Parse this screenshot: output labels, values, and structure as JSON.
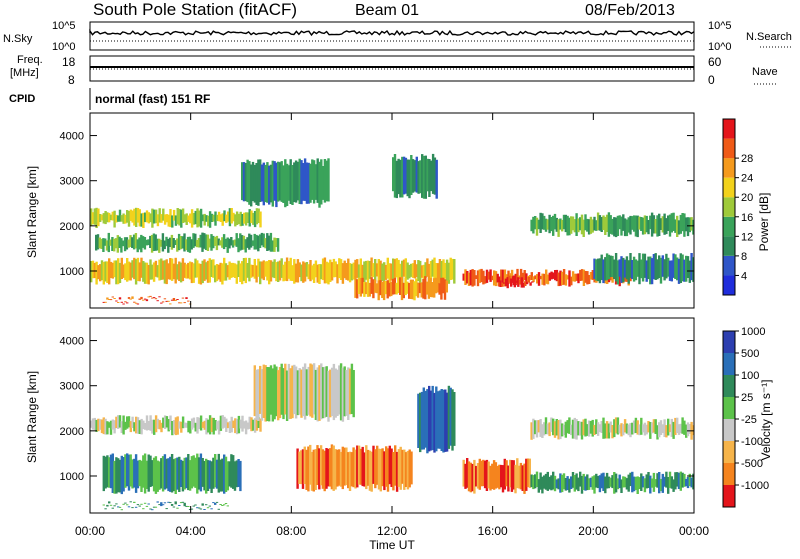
{
  "header": {
    "station": "South Pole Station (fitACF)",
    "beam": "Beam 01",
    "date": "08/Feb/2013"
  },
  "strip": {
    "nsky_label": "N.Sky",
    "nsearch_label": "N.Search",
    "noise_ticks_left": [
      "10^5",
      "10^0"
    ],
    "noise_ticks_right": [
      "10^5",
      "10^0"
    ],
    "freq_label_line1": "Freq.",
    "freq_label_line2": "[MHz]",
    "freq_ticks": [
      "18",
      "8"
    ],
    "nave_label": "Nave",
    "nave_ticks": [
      "60",
      "0"
    ],
    "cpid_label": "CPID",
    "cpid_text": "normal (fast) 151 RF"
  },
  "axes": {
    "time_ticks": [
      "00:00",
      "04:00",
      "08:00",
      "12:00",
      "16:00",
      "20:00",
      "00:00"
    ],
    "xlabel": "Time UT",
    "range_ticks": [
      "1000",
      "2000",
      "3000",
      "4000"
    ],
    "ylabel": "Slant Range [km]"
  },
  "power_bar": {
    "title": "Power [dB]",
    "ticks": [
      "4",
      "8",
      "12",
      "16",
      "20",
      "24",
      "28"
    ],
    "colors": [
      "#1f2ddb",
      "#2f56c8",
      "#2f8a5a",
      "#3aa35a",
      "#9fca3a",
      "#f2d21c",
      "#f59a1d",
      "#ef5a17",
      "#e4151b"
    ]
  },
  "velocity_bar": {
    "title": "Velocity [m s⁻¹]",
    "ticks": [
      "1000",
      "500",
      "100",
      "25",
      "-25",
      "-100",
      "-500",
      "-1000"
    ],
    "colors": [
      "#2d3fb0",
      "#2a6fb8",
      "#2f8a5a",
      "#5cc24a",
      "#c8c8c8",
      "#f6b44a",
      "#f5841e",
      "#e4151b"
    ]
  },
  "chart_data": [
    {
      "type": "heatmap",
      "name": "Power",
      "xlim": [
        0,
        24
      ],
      "ylim": [
        180,
        4500
      ],
      "bands": [
        {
          "t0": 0.0,
          "t1": 6.8,
          "r0": 1950,
          "r1": 2400,
          "level": 4
        },
        {
          "t0": 0.2,
          "t1": 7.5,
          "r0": 1400,
          "r1": 1850,
          "level": 3
        },
        {
          "t0": 0.0,
          "t1": 14.5,
          "r0": 700,
          "r1": 1300,
          "level": 5
        },
        {
          "t0": 0.5,
          "t1": 4.0,
          "r0": 330,
          "r1": 450,
          "level": 7
        },
        {
          "t0": 6.0,
          "t1": 9.5,
          "r0": 2400,
          "r1": 3500,
          "level": 2
        },
        {
          "t0": 12.0,
          "t1": 13.8,
          "r0": 2600,
          "r1": 3600,
          "level": 2
        },
        {
          "t0": 10.5,
          "t1": 14.2,
          "r0": 350,
          "r1": 900,
          "level": 6
        },
        {
          "t0": 14.8,
          "t1": 21.5,
          "r0": 650,
          "r1": 1050,
          "level": 7
        },
        {
          "t0": 16.2,
          "t1": 17.6,
          "r0": 600,
          "r1": 900,
          "level": 8
        },
        {
          "t0": 17.5,
          "t1": 24.0,
          "r0": 1750,
          "r1": 2300,
          "level": 3
        },
        {
          "t0": 20.0,
          "t1": 24.0,
          "r0": 700,
          "r1": 1400,
          "level": 2
        }
      ]
    },
    {
      "type": "heatmap",
      "name": "Velocity",
      "xlim": [
        0,
        24
      ],
      "ylim": [
        180,
        4500
      ],
      "bands": [
        {
          "t0": 0.0,
          "t1": 6.8,
          "r0": 1900,
          "r1": 2350,
          "level": 4
        },
        {
          "t0": 6.5,
          "t1": 10.5,
          "r0": 2200,
          "r1": 3500,
          "level": 4
        },
        {
          "t0": 0.5,
          "t1": 6.0,
          "r0": 600,
          "r1": 1500,
          "level": 2
        },
        {
          "t0": 0.5,
          "t1": 5.5,
          "r0": 320,
          "r1": 440,
          "level": 2
        },
        {
          "t0": 8.2,
          "t1": 12.8,
          "r0": 650,
          "r1": 1700,
          "level": 6
        },
        {
          "t0": 13.0,
          "t1": 14.5,
          "r0": 1500,
          "r1": 3000,
          "level": 1
        },
        {
          "t0": 14.8,
          "t1": 17.5,
          "r0": 600,
          "r1": 1400,
          "level": 6
        },
        {
          "t0": 17.5,
          "t1": 24.0,
          "r0": 1800,
          "r1": 2300,
          "level": 4
        },
        {
          "t0": 17.5,
          "t1": 24.0,
          "r0": 600,
          "r1": 1100,
          "level": 2
        }
      ]
    }
  ]
}
